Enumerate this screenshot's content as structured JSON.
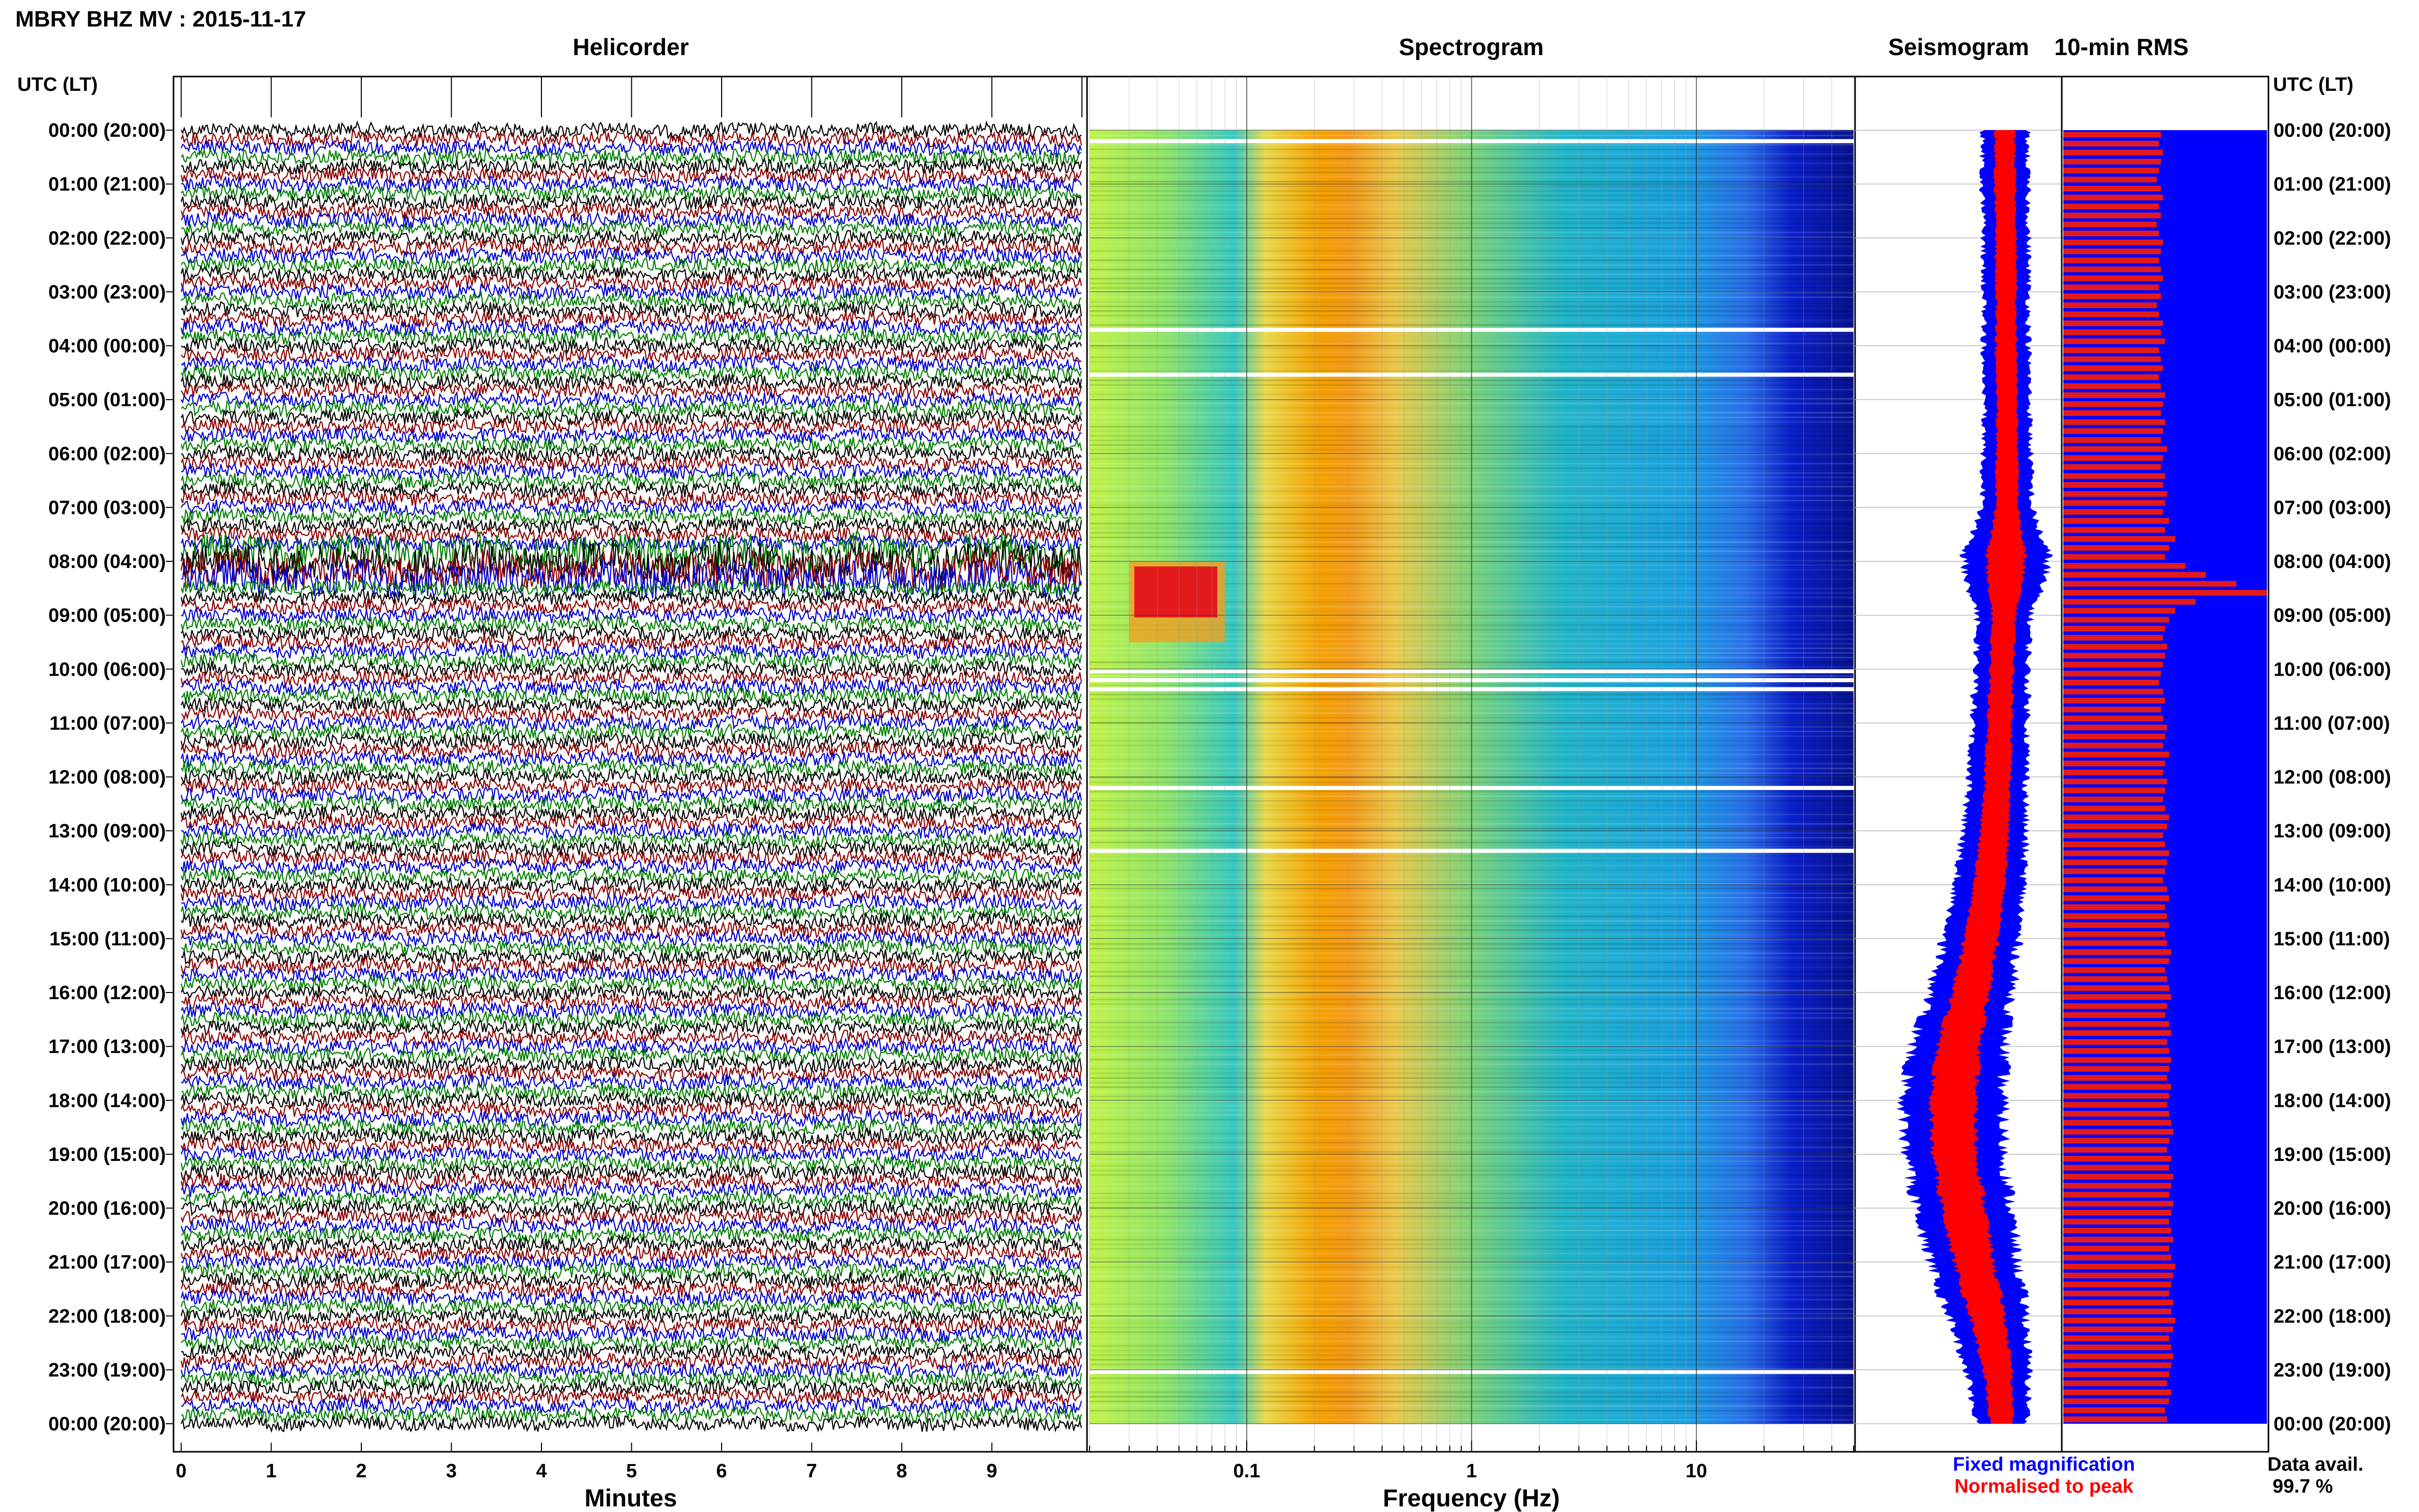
{
  "header": {
    "station_title": "MBRY BHZ MV : 2015-11-17"
  },
  "panels": {
    "helicorder": "Helicorder",
    "spectrogram": "Spectrogram",
    "seismogram": "Seismogram",
    "rms": "10-min RMS"
  },
  "time_axis": {
    "label": "UTC (LT)",
    "ticks": [
      "00:00 (20:00)",
      "01:00 (21:00)",
      "02:00 (22:00)",
      "03:00 (23:00)",
      "04:00 (00:00)",
      "05:00 (01:00)",
      "06:00 (02:00)",
      "07:00 (03:00)",
      "08:00 (04:00)",
      "09:00 (05:00)",
      "10:00 (06:00)",
      "11:00 (07:00)",
      "12:00 (08:00)",
      "13:00 (09:00)",
      "14:00 (10:00)",
      "15:00 (11:00)",
      "16:00 (12:00)",
      "17:00 (13:00)",
      "18:00 (14:00)",
      "19:00 (15:00)",
      "20:00 (16:00)",
      "21:00 (17:00)",
      "22:00 (18:00)",
      "23:00 (19:00)",
      "00:00 (20:00)"
    ]
  },
  "footer": {
    "fixed_magnification": "Fixed magnification",
    "normalised_to_peak": "Normalised to peak",
    "data_avail_label": "Data avail.",
    "data_avail_value": "99.7 %"
  },
  "colors": {
    "helicorder_traces": [
      "#000000",
      "#8b0000",
      "#0000cd",
      "#008000"
    ],
    "fixed_magnification": "#0000ff",
    "normalised_to_peak": "#ff0000",
    "rms_background": "#0000ff",
    "rms_bars": "#e31a1c"
  },
  "chart_data": [
    {
      "type": "line",
      "panel": "helicorder",
      "xlabel": "Minutes",
      "x_ticks": [
        "0",
        "1",
        "2",
        "3",
        "4",
        "5",
        "6",
        "7",
        "8",
        "9"
      ],
      "xlim": [
        0,
        10
      ],
      "rows_per_hour": 6,
      "hours": 24,
      "notable_events": [
        {
          "utc": "08:00",
          "description_label": "",
          "minutes": [
            0,
            10
          ]
        }
      ]
    },
    {
      "type": "heatmap",
      "panel": "spectrogram",
      "xlabel": "Frequency (Hz)",
      "x_scale": "log",
      "x_ticks": [
        "0.1",
        "1",
        "10"
      ],
      "xlim": [
        0.02,
        50
      ],
      "dominant_band_hz": [
        0.15,
        0.5
      ],
      "event": {
        "utc_start": "08:00",
        "utc_end": "09:30",
        "freq_hz": [
          0.03,
          0.08
        ]
      },
      "data_gaps_utc": [
        "00:10",
        "03:40",
        "04:30",
        "10:00",
        "10:10",
        "10:20",
        "12:10",
        "13:20",
        "23:00"
      ]
    },
    {
      "type": "area",
      "panel": "seismogram",
      "series": [
        {
          "name": "Fixed magnification",
          "color": "#0000ff"
        },
        {
          "name": "Normalised to peak",
          "color": "#ff0000"
        }
      ],
      "center_offset_by_hour": [
        0.45,
        0.45,
        0.46,
        0.46,
        0.46,
        0.47,
        0.47,
        0.47,
        0.46,
        0.44,
        0.42,
        0.4,
        0.38,
        0.35,
        0.3,
        0.22,
        0.12,
        0.0,
        -0.05,
        -0.04,
        0.05,
        0.15,
        0.28,
        0.38,
        0.42
      ],
      "width_by_hour": [
        0.22,
        0.22,
        0.22,
        0.22,
        0.22,
        0.22,
        0.23,
        0.24,
        0.42,
        0.26,
        0.25,
        0.27,
        0.28,
        0.3,
        0.33,
        0.36,
        0.4,
        0.45,
        0.48,
        0.48,
        0.46,
        0.42,
        0.38,
        0.3,
        0.25
      ]
    },
    {
      "type": "bar",
      "panel": "rms",
      "title": "10-min RMS",
      "orientation": "horizontal",
      "values": [
        0.48,
        0.47,
        0.49,
        0.48,
        0.47,
        0.46,
        0.48,
        0.49,
        0.47,
        0.48,
        0.46,
        0.47,
        0.49,
        0.48,
        0.47,
        0.48,
        0.49,
        0.47,
        0.48,
        0.46,
        0.47,
        0.49,
        0.48,
        0.5,
        0.47,
        0.48,
        0.49,
        0.47,
        0.48,
        0.5,
        0.49,
        0.48,
        0.5,
        0.49,
        0.48,
        0.51,
        0.49,
        0.48,
        0.5,
        0.49,
        0.51,
        0.5,
        0.49,
        0.52,
        0.5,
        0.55,
        0.52,
        0.5,
        0.6,
        0.7,
        0.85,
        1.0,
        0.65,
        0.55,
        0.52,
        0.5,
        0.49,
        0.51,
        0.5,
        0.49,
        0.48,
        0.47,
        0.49,
        0.5,
        0.48,
        0.49,
        0.51,
        0.5,
        0.49,
        0.52,
        0.5,
        0.49,
        0.51,
        0.5,
        0.49,
        0.5,
        0.52,
        0.51,
        0.49,
        0.5,
        0.52,
        0.51,
        0.5,
        0.49,
        0.51,
        0.52,
        0.5,
        0.51,
        0.52,
        0.5,
        0.51,
        0.53,
        0.52,
        0.5,
        0.51,
        0.52,
        0.53,
        0.51,
        0.5,
        0.52,
        0.53,
        0.51,
        0.52,
        0.53,
        0.52,
        0.51,
        0.53,
        0.52,
        0.51,
        0.52,
        0.53,
        0.54,
        0.52,
        0.51,
        0.53,
        0.52,
        0.54,
        0.53,
        0.52,
        0.54,
        0.53,
        0.52,
        0.53,
        0.54,
        0.52,
        0.53,
        0.55,
        0.54,
        0.53,
        0.52,
        0.54,
        0.53,
        0.55,
        0.54,
        0.52,
        0.53,
        0.54,
        0.53,
        0.52,
        0.51,
        0.53,
        0.52,
        0.5,
        0.51
      ]
    }
  ]
}
